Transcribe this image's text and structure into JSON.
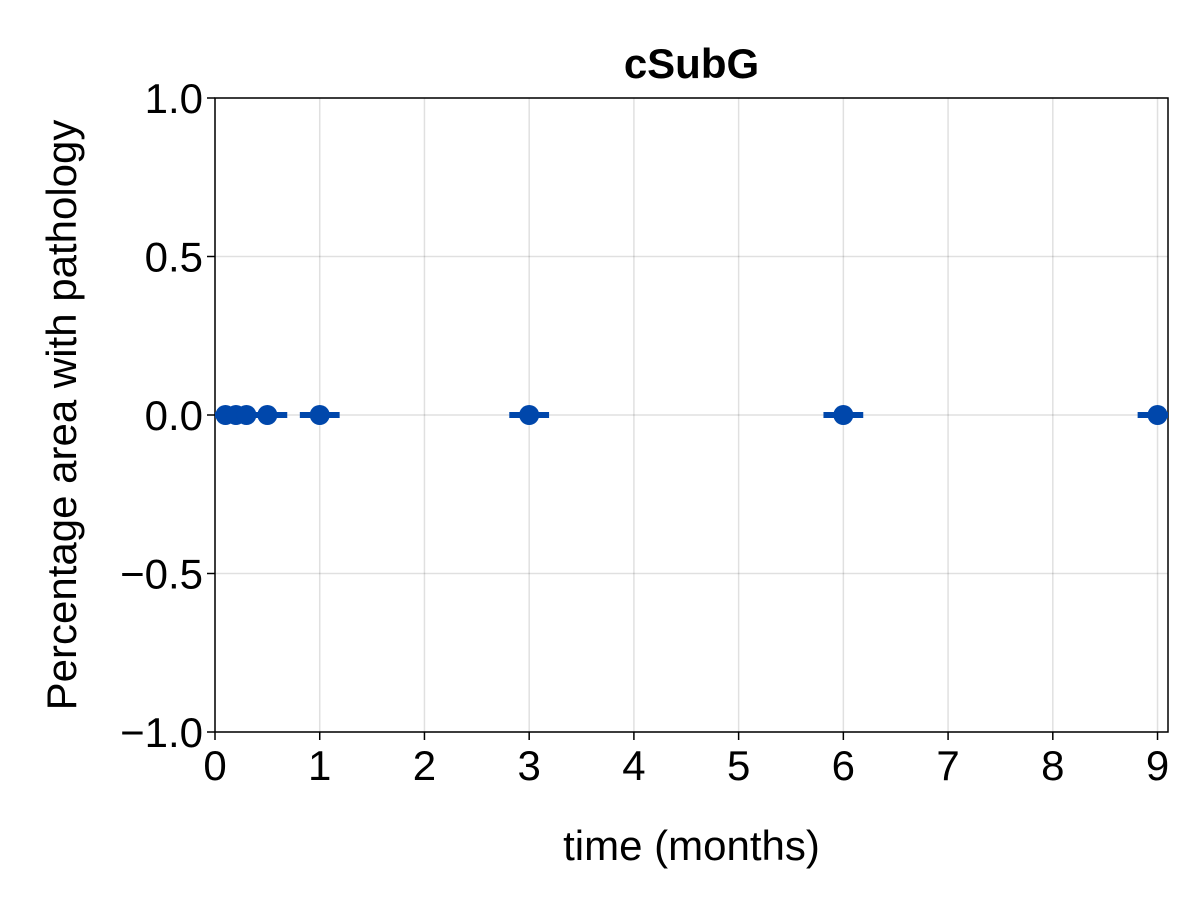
{
  "chart_data": {
    "type": "scatter",
    "title": "cSubG",
    "xlabel": "time (months)",
    "ylabel": "Percentage area with pathology",
    "xlim": [
      0,
      9.1
    ],
    "ylim": [
      -1.0,
      1.0
    ],
    "x_ticks": [
      0,
      1,
      2,
      3,
      4,
      5,
      6,
      7,
      8,
      9
    ],
    "x_tick_labels": [
      "0",
      "1",
      "2",
      "3",
      "4",
      "5",
      "6",
      "7",
      "8",
      "9"
    ],
    "y_ticks": [
      -1.0,
      -0.5,
      0.0,
      0.5,
      1.0
    ],
    "y_tick_labels": [
      "−1.0",
      "−0.5",
      "0.0",
      "0.5",
      "1.0"
    ],
    "grid": true,
    "errorbar_half_width_months": 0.19,
    "series": [
      {
        "color": "#0047ab",
        "points": [
          {
            "x": 0.1,
            "y": 0.0
          },
          {
            "x": 0.2,
            "y": 0.0
          },
          {
            "x": 0.3,
            "y": 0.0
          },
          {
            "x": 0.5,
            "y": 0.0
          },
          {
            "x": 1.0,
            "y": 0.0
          },
          {
            "x": 3.0,
            "y": 0.0
          },
          {
            "x": 6.0,
            "y": 0.0
          },
          {
            "x": 9.0,
            "y": 0.0
          }
        ]
      }
    ]
  }
}
